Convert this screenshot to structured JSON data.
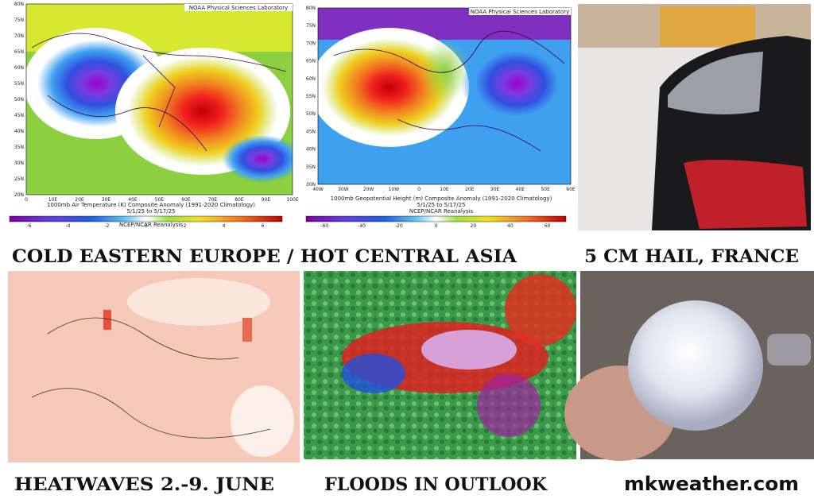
{
  "panels": [
    {
      "source": "NOAA Physical Sciences Laboratory",
      "title": "1000mb Air Temperature (K) Composite Anomaly (1991-2020 Climatology)",
      "dates": "5/1/25 to 5/17/25",
      "credit": "NCEP/NCAR Reanalysis",
      "y_labels": [
        "80N",
        "75N",
        "70N",
        "65N",
        "60N",
        "55N",
        "50N",
        "45N",
        "40N",
        "35N",
        "30N",
        "25N",
        "20N"
      ],
      "x_labels": [
        "0",
        "10E",
        "20E",
        "30E",
        "40E",
        "50E",
        "60E",
        "70E",
        "80E",
        "90E",
        "100E"
      ],
      "colorbar_ticks": [
        -6,
        -4,
        -2,
        0,
        2,
        4,
        6
      ]
    },
    {
      "source": "NOAA Physical Sciences Laboratory",
      "title": "1000mb Geopotential Height (m) Composite Anomaly (1991-2020 Climatology)",
      "dates": "5/1/25 to 5/17/25",
      "credit": "NCEP/NCAR Reanalysis",
      "y_labels": [
        "80N",
        "75N",
        "70N",
        "65N",
        "60N",
        "55N",
        "50N",
        "45N",
        "40N",
        "35N",
        "30N"
      ],
      "x_labels": [
        "40W",
        "30W",
        "20W",
        "10W",
        "0",
        "10E",
        "20E",
        "30E",
        "40E",
        "50E",
        "60E"
      ],
      "colorbar_ticks": [
        -60,
        -40,
        -20,
        0,
        20,
        40,
        60
      ]
    }
  ],
  "captions": [
    "COLD EASTERN EUROPE / HOT CENTRAL ASIA",
    "5 CM HAIL, FRANCE",
    "HEATWAVES 2.-9. JUNE",
    "FLOODS IN OUTLOOK"
  ],
  "website": "mkweather.com"
}
